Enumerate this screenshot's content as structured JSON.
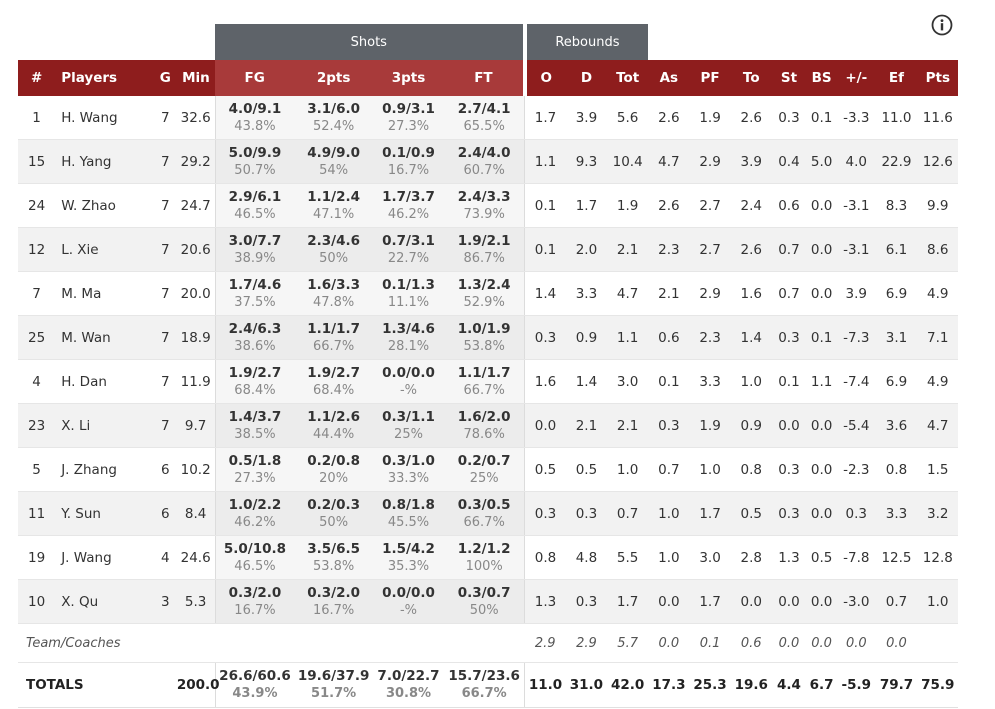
{
  "group_headers": {
    "shots": "Shots",
    "rebounds": "Rebounds"
  },
  "columns": {
    "num": "#",
    "players": "Players",
    "g": "G",
    "min": "Min",
    "fg": "FG",
    "two": "2pts",
    "three": "3pts",
    "ft": "FT",
    "o": "O",
    "d": "D",
    "tot": "Tot",
    "as": "As",
    "pf": "PF",
    "to": "To",
    "st": "St",
    "bs": "BS",
    "pm": "+/-",
    "ef": "Ef",
    "pts": "Pts"
  },
  "players": [
    {
      "num": "1",
      "name": "H. Wang",
      "g": "7",
      "min": "32.6",
      "fg": "4.0/9.1",
      "fg_pct": "43.8%",
      "two": "3.1/6.0",
      "two_pct": "52.4%",
      "three": "0.9/3.1",
      "three_pct": "27.3%",
      "ft": "2.7/4.1",
      "ft_pct": "65.5%",
      "o": "1.7",
      "d": "3.9",
      "tot": "5.6",
      "as": "2.6",
      "pf": "1.9",
      "to": "2.6",
      "st": "0.3",
      "bs": "0.1",
      "pm": "-3.3",
      "ef": "11.0",
      "pts": "11.6"
    },
    {
      "num": "15",
      "name": "H. Yang",
      "g": "7",
      "min": "29.2",
      "fg": "5.0/9.9",
      "fg_pct": "50.7%",
      "two": "4.9/9.0",
      "two_pct": "54%",
      "three": "0.1/0.9",
      "three_pct": "16.7%",
      "ft": "2.4/4.0",
      "ft_pct": "60.7%",
      "o": "1.1",
      "d": "9.3",
      "tot": "10.4",
      "as": "4.7",
      "pf": "2.9",
      "to": "3.9",
      "st": "0.4",
      "bs": "5.0",
      "pm": "4.0",
      "ef": "22.9",
      "pts": "12.6"
    },
    {
      "num": "24",
      "name": "W. Zhao",
      "g": "7",
      "min": "24.7",
      "fg": "2.9/6.1",
      "fg_pct": "46.5%",
      "two": "1.1/2.4",
      "two_pct": "47.1%",
      "three": "1.7/3.7",
      "three_pct": "46.2%",
      "ft": "2.4/3.3",
      "ft_pct": "73.9%",
      "o": "0.1",
      "d": "1.7",
      "tot": "1.9",
      "as": "2.6",
      "pf": "2.7",
      "to": "2.4",
      "st": "0.6",
      "bs": "0.0",
      "pm": "-3.1",
      "ef": "8.3",
      "pts": "9.9"
    },
    {
      "num": "12",
      "name": "L. Xie",
      "g": "7",
      "min": "20.6",
      "fg": "3.0/7.7",
      "fg_pct": "38.9%",
      "two": "2.3/4.6",
      "two_pct": "50%",
      "three": "0.7/3.1",
      "three_pct": "22.7%",
      "ft": "1.9/2.1",
      "ft_pct": "86.7%",
      "o": "0.1",
      "d": "2.0",
      "tot": "2.1",
      "as": "2.3",
      "pf": "2.7",
      "to": "2.6",
      "st": "0.7",
      "bs": "0.0",
      "pm": "-3.1",
      "ef": "6.1",
      "pts": "8.6"
    },
    {
      "num": "7",
      "name": "M. Ma",
      "g": "7",
      "min": "20.0",
      "fg": "1.7/4.6",
      "fg_pct": "37.5%",
      "two": "1.6/3.3",
      "two_pct": "47.8%",
      "three": "0.1/1.3",
      "three_pct": "11.1%",
      "ft": "1.3/2.4",
      "ft_pct": "52.9%",
      "o": "1.4",
      "d": "3.3",
      "tot": "4.7",
      "as": "2.1",
      "pf": "2.9",
      "to": "1.6",
      "st": "0.7",
      "bs": "0.0",
      "pm": "3.9",
      "ef": "6.9",
      "pts": "4.9"
    },
    {
      "num": "25",
      "name": "M. Wan",
      "g": "7",
      "min": "18.9",
      "fg": "2.4/6.3",
      "fg_pct": "38.6%",
      "two": "1.1/1.7",
      "two_pct": "66.7%",
      "three": "1.3/4.6",
      "three_pct": "28.1%",
      "ft": "1.0/1.9",
      "ft_pct": "53.8%",
      "o": "0.3",
      "d": "0.9",
      "tot": "1.1",
      "as": "0.6",
      "pf": "2.3",
      "to": "1.4",
      "st": "0.3",
      "bs": "0.1",
      "pm": "-7.3",
      "ef": "3.1",
      "pts": "7.1"
    },
    {
      "num": "4",
      "name": "H. Dan",
      "g": "7",
      "min": "11.9",
      "fg": "1.9/2.7",
      "fg_pct": "68.4%",
      "two": "1.9/2.7",
      "two_pct": "68.4%",
      "three": "0.0/0.0",
      "three_pct": "-%",
      "ft": "1.1/1.7",
      "ft_pct": "66.7%",
      "o": "1.6",
      "d": "1.4",
      "tot": "3.0",
      "as": "0.1",
      "pf": "3.3",
      "to": "1.0",
      "st": "0.1",
      "bs": "1.1",
      "pm": "-7.4",
      "ef": "6.9",
      "pts": "4.9"
    },
    {
      "num": "23",
      "name": "X. Li",
      "g": "7",
      "min": "9.7",
      "fg": "1.4/3.7",
      "fg_pct": "38.5%",
      "two": "1.1/2.6",
      "two_pct": "44.4%",
      "three": "0.3/1.1",
      "three_pct": "25%",
      "ft": "1.6/2.0",
      "ft_pct": "78.6%",
      "o": "0.0",
      "d": "2.1",
      "tot": "2.1",
      "as": "0.3",
      "pf": "1.9",
      "to": "0.9",
      "st": "0.0",
      "bs": "0.0",
      "pm": "-5.4",
      "ef": "3.6",
      "pts": "4.7"
    },
    {
      "num": "5",
      "name": "J. Zhang",
      "g": "6",
      "min": "10.2",
      "fg": "0.5/1.8",
      "fg_pct": "27.3%",
      "two": "0.2/0.8",
      "two_pct": "20%",
      "three": "0.3/1.0",
      "three_pct": "33.3%",
      "ft": "0.2/0.7",
      "ft_pct": "25%",
      "o": "0.5",
      "d": "0.5",
      "tot": "1.0",
      "as": "0.7",
      "pf": "1.0",
      "to": "0.8",
      "st": "0.3",
      "bs": "0.0",
      "pm": "-2.3",
      "ef": "0.8",
      "pts": "1.5"
    },
    {
      "num": "11",
      "name": "Y. Sun",
      "g": "6",
      "min": "8.4",
      "fg": "1.0/2.2",
      "fg_pct": "46.2%",
      "two": "0.2/0.3",
      "two_pct": "50%",
      "three": "0.8/1.8",
      "three_pct": "45.5%",
      "ft": "0.3/0.5",
      "ft_pct": "66.7%",
      "o": "0.3",
      "d": "0.3",
      "tot": "0.7",
      "as": "1.0",
      "pf": "1.7",
      "to": "0.5",
      "st": "0.3",
      "bs": "0.0",
      "pm": "0.3",
      "ef": "3.3",
      "pts": "3.2"
    },
    {
      "num": "19",
      "name": "J. Wang",
      "g": "4",
      "min": "24.6",
      "fg": "5.0/10.8",
      "fg_pct": "46.5%",
      "two": "3.5/6.5",
      "two_pct": "53.8%",
      "three": "1.5/4.2",
      "three_pct": "35.3%",
      "ft": "1.2/1.2",
      "ft_pct": "100%",
      "o": "0.8",
      "d": "4.8",
      "tot": "5.5",
      "as": "1.0",
      "pf": "3.0",
      "to": "2.8",
      "st": "1.3",
      "bs": "0.5",
      "pm": "-7.8",
      "ef": "12.5",
      "pts": "12.8"
    },
    {
      "num": "10",
      "name": "X. Qu",
      "g": "3",
      "min": "5.3",
      "fg": "0.3/2.0",
      "fg_pct": "16.7%",
      "two": "0.3/2.0",
      "two_pct": "16.7%",
      "three": "0.0/0.0",
      "three_pct": "-%",
      "ft": "0.3/0.7",
      "ft_pct": "50%",
      "o": "1.3",
      "d": "0.3",
      "tot": "1.7",
      "as": "0.0",
      "pf": "1.7",
      "to": "0.0",
      "st": "0.0",
      "bs": "0.0",
      "pm": "-3.0",
      "ef": "0.7",
      "pts": "1.0"
    }
  ],
  "team_coaches": {
    "label": "Team/Coaches",
    "o": "2.9",
    "d": "2.9",
    "tot": "5.7",
    "as": "0.0",
    "pf": "0.1",
    "to": "0.6",
    "st": "0.0",
    "bs": "0.0",
    "pm": "0.0",
    "ef": "0.0"
  },
  "totals": {
    "label": "TOTALS",
    "min": "200.0",
    "fg": "26.6/60.6",
    "fg_pct": "43.9%",
    "two": "19.6/37.9",
    "two_pct": "51.7%",
    "three": "7.0/22.7",
    "three_pct": "30.8%",
    "ft": "15.7/23.6",
    "ft_pct": "66.7%",
    "o": "11.0",
    "d": "31.0",
    "tot": "42.0",
    "as": "17.3",
    "pf": "25.3",
    "to": "19.6",
    "st": "4.4",
    "bs": "6.7",
    "pm": "-5.9",
    "ef": "79.7",
    "pts": "75.9"
  },
  "icons": {
    "info": "info-icon"
  },
  "colors": {
    "header_red": "#8e1d1d",
    "header_red_light": "#a83a3a",
    "group_gray": "#5e6369",
    "player_name": "#c7a064"
  }
}
